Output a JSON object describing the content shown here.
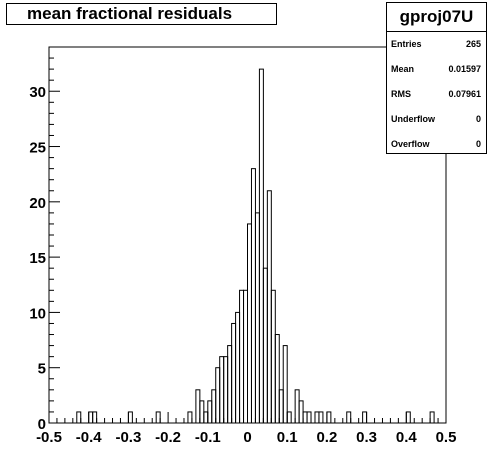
{
  "title": "mean fractional residuals",
  "stats": {
    "name": "gproj07U",
    "rows": [
      {
        "label": "Entries",
        "value": "265"
      },
      {
        "label": "Mean",
        "value": "0.01597"
      },
      {
        "label": "RMS",
        "value": "0.07961"
      },
      {
        "label": "Underflow",
        "value": "0"
      },
      {
        "label": "Overflow",
        "value": "0"
      }
    ]
  },
  "chart_data": {
    "type": "bar",
    "title": "mean fractional residuals",
    "xlabel": "",
    "ylabel": "",
    "xlim": [
      -0.5,
      0.5
    ],
    "ylim": [
      0,
      34
    ],
    "bin_width": 0.01,
    "x_ticks": [
      "-0.5",
      "-0.4",
      "-0.3",
      "-0.2",
      "-0.1",
      "0",
      "0.1",
      "0.2",
      "0.3",
      "0.4",
      "0.5"
    ],
    "y_ticks": [
      "0",
      "5",
      "10",
      "15",
      "20",
      "25",
      "30"
    ],
    "bins": [
      {
        "x": -0.43,
        "count": 1
      },
      {
        "x": -0.4,
        "count": 1
      },
      {
        "x": -0.39,
        "count": 1
      },
      {
        "x": -0.3,
        "count": 1
      },
      {
        "x": -0.23,
        "count": 1
      },
      {
        "x": -0.15,
        "count": 1
      },
      {
        "x": -0.13,
        "count": 3
      },
      {
        "x": -0.12,
        "count": 2
      },
      {
        "x": -0.11,
        "count": 1
      },
      {
        "x": -0.1,
        "count": 2
      },
      {
        "x": -0.09,
        "count": 3
      },
      {
        "x": -0.08,
        "count": 5
      },
      {
        "x": -0.07,
        "count": 6
      },
      {
        "x": -0.06,
        "count": 6
      },
      {
        "x": -0.05,
        "count": 7
      },
      {
        "x": -0.04,
        "count": 9
      },
      {
        "x": -0.03,
        "count": 10
      },
      {
        "x": -0.02,
        "count": 12
      },
      {
        "x": -0.01,
        "count": 12
      },
      {
        "x": 0.0,
        "count": 18
      },
      {
        "x": 0.01,
        "count": 23
      },
      {
        "x": 0.02,
        "count": 19
      },
      {
        "x": 0.03,
        "count": 32
      },
      {
        "x": 0.04,
        "count": 14
      },
      {
        "x": 0.05,
        "count": 21
      },
      {
        "x": 0.06,
        "count": 12
      },
      {
        "x": 0.07,
        "count": 8
      },
      {
        "x": 0.08,
        "count": 3
      },
      {
        "x": 0.09,
        "count": 7
      },
      {
        "x": 0.1,
        "count": 1
      },
      {
        "x": 0.12,
        "count": 3
      },
      {
        "x": 0.13,
        "count": 2
      },
      {
        "x": 0.14,
        "count": 1
      },
      {
        "x": 0.15,
        "count": 1
      },
      {
        "x": 0.17,
        "count": 1
      },
      {
        "x": 0.18,
        "count": 1
      },
      {
        "x": 0.2,
        "count": 1
      },
      {
        "x": 0.25,
        "count": 1
      },
      {
        "x": 0.29,
        "count": 1
      },
      {
        "x": 0.4,
        "count": 1
      },
      {
        "x": 0.46,
        "count": 1
      }
    ]
  }
}
